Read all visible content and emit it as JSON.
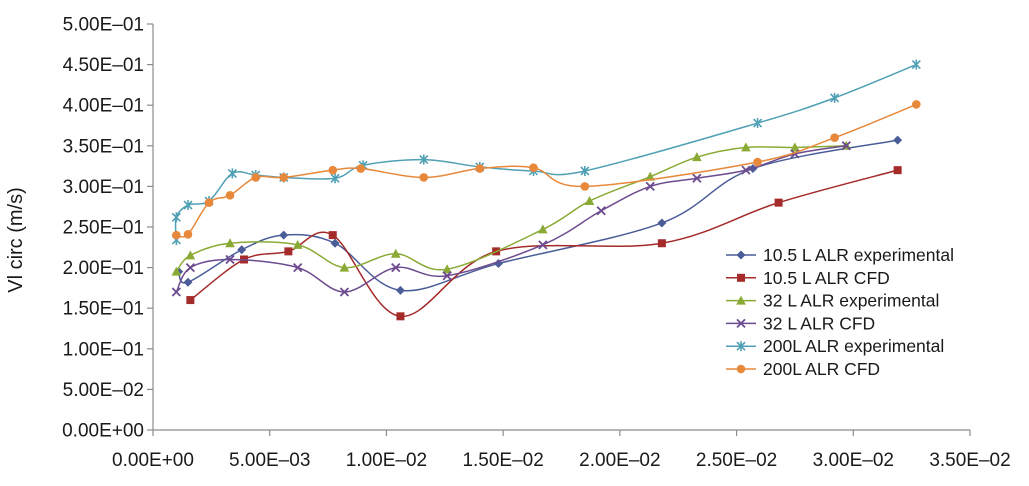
{
  "chart_data": {
    "type": "line",
    "title": "",
    "xlabel": "",
    "ylabel": "Vl circ (m/s)",
    "xlim": [
      0,
      0.035
    ],
    "ylim": [
      0,
      0.5
    ],
    "x_ticks": [
      0,
      0.005,
      0.01,
      0.015,
      0.02,
      0.025,
      0.03,
      0.035
    ],
    "x_tick_labels": [
      "0.00E+00",
      "5.00E–03",
      "1.00E–02",
      "1.50E–02",
      "2.00E–02",
      "2.50E–02",
      "3.00E–02",
      "3.50E–02"
    ],
    "y_ticks": [
      0,
      0.05,
      0.1,
      0.15,
      0.2,
      0.25,
      0.3,
      0.35,
      0.4,
      0.45,
      0.5
    ],
    "y_tick_labels": [
      "0.00E+00",
      "5.00E–02",
      "1.00E–01",
      "1.50E–01",
      "2.00E–01",
      "2.50E–01",
      "3.00E–01",
      "3.50E–01",
      "4.00E–01",
      "4.50E–01",
      "5.00E–01"
    ],
    "grid": false,
    "legend_position": "right",
    "series": [
      {
        "name": "10.5 L ALR experimental",
        "color": "#4a5d99",
        "marker": "diamond",
        "x": [
          0.0011,
          0.0015,
          0.0038,
          0.0056,
          0.0078,
          0.0106,
          0.0148,
          0.0218,
          0.0257,
          0.0319
        ],
        "y": [
          0.195,
          0.182,
          0.222,
          0.24,
          0.23,
          0.172,
          0.205,
          0.255,
          0.322,
          0.357
        ]
      },
      {
        "name": "10.5 L ALR CFD",
        "color": "#a52a2a",
        "marker": "square",
        "x": [
          0.0016,
          0.0039,
          0.0058,
          0.0077,
          0.0106,
          0.0147,
          0.0218,
          0.0268,
          0.0319
        ],
        "y": [
          0.16,
          0.21,
          0.22,
          0.24,
          0.14,
          0.22,
          0.23,
          0.28,
          0.32
        ]
      },
      {
        "name": "32 L ALR experimental",
        "color": "#8aaa35",
        "marker": "triangle",
        "x": [
          0.001,
          0.0016,
          0.0033,
          0.0062,
          0.0082,
          0.0104,
          0.0126,
          0.0167,
          0.0187,
          0.0213,
          0.0233,
          0.0254,
          0.0275,
          0.0297
        ],
        "y": [
          0.195,
          0.215,
          0.23,
          0.228,
          0.2,
          0.217,
          0.198,
          0.247,
          0.282,
          0.312,
          0.336,
          0.348,
          0.348,
          0.35
        ]
      },
      {
        "name": "32 L ALR CFD",
        "color": "#6c4b8f",
        "marker": "x",
        "x": [
          0.001,
          0.0016,
          0.0033,
          0.0062,
          0.0082,
          0.0104,
          0.0126,
          0.0167,
          0.0192,
          0.0213,
          0.0233,
          0.0254,
          0.0275,
          0.0297
        ],
        "y": [
          0.17,
          0.2,
          0.21,
          0.2,
          0.17,
          0.2,
          0.19,
          0.228,
          0.27,
          0.3,
          0.31,
          0.32,
          0.34,
          0.35
        ]
      },
      {
        "name": "200L ALR experimental",
        "color": "#4fa0b4",
        "marker": "star",
        "x": [
          0.001,
          0.001,
          0.0015,
          0.0024,
          0.0034,
          0.0044,
          0.0056,
          0.0078,
          0.009,
          0.0116,
          0.014,
          0.0163,
          0.0185,
          0.0259,
          0.0292,
          0.0327
        ],
        "y": [
          0.234,
          0.262,
          0.277,
          0.282,
          0.316,
          0.314,
          0.311,
          0.31,
          0.326,
          0.333,
          0.324,
          0.319,
          0.319,
          0.378,
          0.409,
          0.45
        ]
      },
      {
        "name": "200L ALR CFD",
        "color": "#e8883a",
        "marker": "circle",
        "x": [
          0.001,
          0.0015,
          0.0024,
          0.0033,
          0.0044,
          0.0056,
          0.0077,
          0.0089,
          0.0116,
          0.014,
          0.0163,
          0.0185,
          0.0259,
          0.0292,
          0.0327
        ],
        "y": [
          0.24,
          0.241,
          0.28,
          0.289,
          0.311,
          0.311,
          0.32,
          0.322,
          0.311,
          0.322,
          0.323,
          0.3,
          0.33,
          0.36,
          0.401
        ]
      }
    ]
  }
}
